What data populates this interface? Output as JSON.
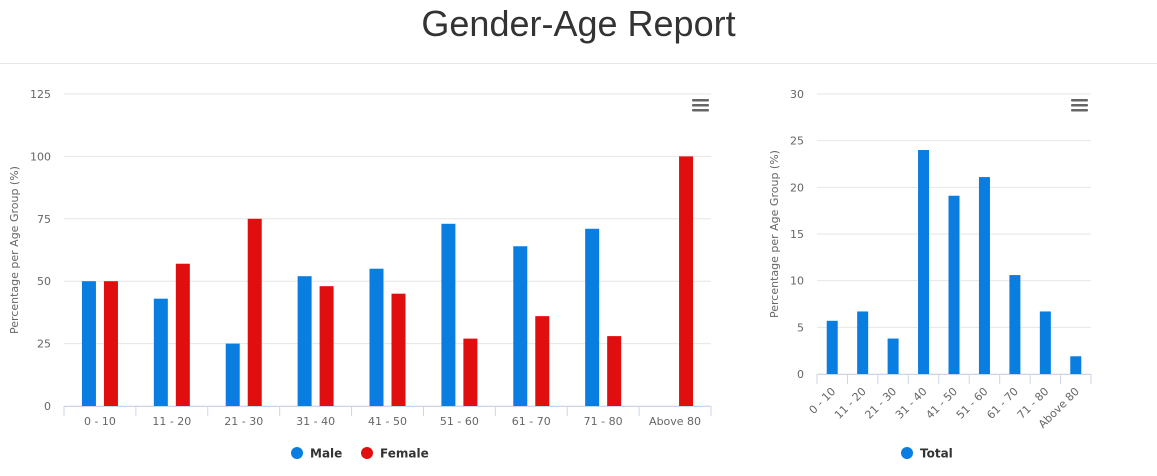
{
  "page": {
    "title": "Gender-Age Report"
  },
  "chart_data": [
    {
      "type": "bar",
      "categories": [
        "0 - 10",
        "11 - 20",
        "21 - 30",
        "31 - 40",
        "41 - 50",
        "51 - 60",
        "61 - 70",
        "71 - 80",
        "Above 80"
      ],
      "series": [
        {
          "name": "Male",
          "color": "#0a7de0",
          "values": [
            50,
            43,
            25,
            52,
            55,
            73,
            64,
            71,
            0
          ]
        },
        {
          "name": "Female",
          "color": "#e00e0e",
          "values": [
            50,
            57,
            75,
            48,
            45,
            27,
            36,
            28,
            100
          ]
        }
      ],
      "ylabel": "Percentage per Age Group (%)",
      "ylim": [
        0,
        125
      ],
      "yticks": [
        0,
        25,
        50,
        75,
        100,
        125
      ],
      "grid": true,
      "legend": "bottom-center",
      "menu_icon": "hamburger-menu-icon"
    },
    {
      "type": "bar",
      "categories": [
        "0 - 10",
        "11 - 20",
        "21 - 30",
        "31 - 40",
        "41 - 50",
        "51 - 60",
        "61 - 70",
        "71 - 80",
        "Above 80"
      ],
      "series": [
        {
          "name": "Total",
          "color": "#0a7de0",
          "values": [
            5.7,
            6.7,
            3.8,
            24,
            19.1,
            21.1,
            10.6,
            6.7,
            1.9
          ]
        }
      ],
      "ylabel": "Percentage per Age Group (%)",
      "ylim": [
        0,
        30
      ],
      "yticks": [
        0,
        5,
        10,
        15,
        20,
        25,
        30
      ],
      "grid": true,
      "legend": "bottom-center",
      "menu_icon": "hamburger-menu-icon"
    }
  ]
}
